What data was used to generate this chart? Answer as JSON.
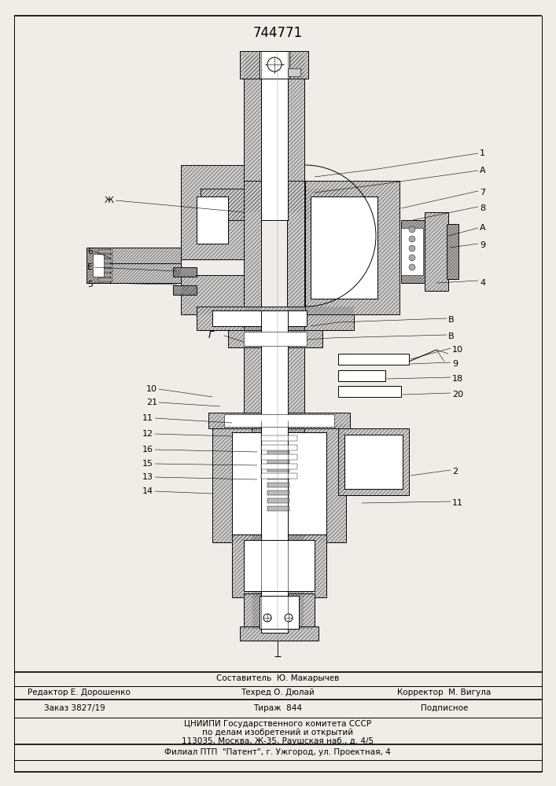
{
  "patent_number": "744771",
  "bg_color": "#f0ede8",
  "white": "#ffffff",
  "hatch_fc": "#d4d4d4",
  "footer": {
    "sestavitel": "Составитель  Ю. Макарычев",
    "redaktor": "Редактор Е. Дорошенко",
    "tehred": "Техред О. Дюлай",
    "korrektor": "Корректор  М. Вигула",
    "zakaz": "Заказ 3827/19",
    "tirazh": "Тираж  844",
    "podpisnoe": "Подписное",
    "cniip1": "ЦНИИПИ Государственного комитета СССР",
    "cniip2": "по делам изобретений и открытий",
    "cniip3": "113035, Москва, Ж-35, Раушская наб., д. 4/5",
    "filial": "Филиал ПТП  \"Патент\", г. Ужгород, ул. Проектная, 4"
  }
}
